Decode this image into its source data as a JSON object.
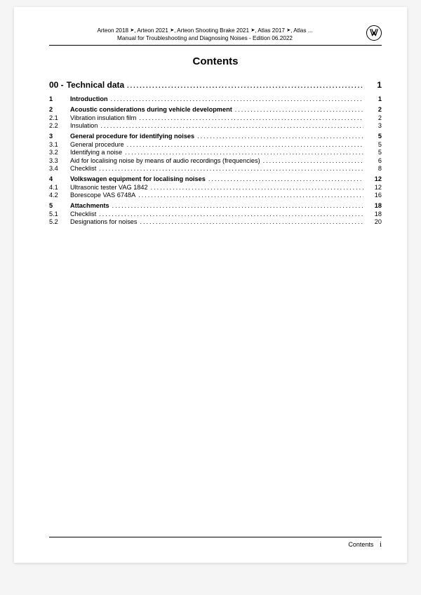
{
  "header": {
    "line1_parts": [
      "Arteon 2018 ",
      "➤",
      ", Arteon 2021 ",
      "➤",
      ", Arteon Shooting Brake 2021 ",
      "➤",
      ", Atlas 2017 ",
      "➤",
      ", Atlas ..."
    ],
    "line2": "Manual for Troubleshooting and Diagnosing Noises - Edition 06.2022"
  },
  "title": "Contents",
  "section": {
    "num": "00 -",
    "label": "Technical data",
    "page": "1"
  },
  "groups": [
    {
      "rows": [
        {
          "num": "1",
          "label": "Introduction",
          "page": "1",
          "bold": true
        }
      ]
    },
    {
      "rows": [
        {
          "num": "2",
          "label": "Acoustic considerations during vehicle development",
          "page": "2",
          "bold": true
        },
        {
          "num": "2.1",
          "label": "Vibration insulation film",
          "page": "2",
          "bold": false
        },
        {
          "num": "2.2",
          "label": "Insulation",
          "page": "3",
          "bold": false
        }
      ]
    },
    {
      "rows": [
        {
          "num": "3",
          "label": "General procedure for identifying noises",
          "page": "5",
          "bold": true
        },
        {
          "num": "3.1",
          "label": "General procedure",
          "page": "5",
          "bold": false
        },
        {
          "num": "3.2",
          "label": "Identifying a noise",
          "page": "5",
          "bold": false
        },
        {
          "num": "3.3",
          "label": "Aid for localising noise by means of audio recordings (frequencies)",
          "page": "6",
          "bold": false
        },
        {
          "num": "3.4",
          "label": "Checklist",
          "page": "8",
          "bold": false
        }
      ]
    },
    {
      "rows": [
        {
          "num": "4",
          "label": "Volkswagen equipment for localising noises",
          "page": "12",
          "bold": true
        },
        {
          "num": "4.1",
          "label": "Ultrasonic tester VAG 1842",
          "page": "12",
          "bold": false
        },
        {
          "num": "4.2",
          "label": "Borescope VAS 6748A",
          "page": "16",
          "bold": false
        }
      ]
    },
    {
      "rows": [
        {
          "num": "5",
          "label": "Attachments",
          "page": "18",
          "bold": true
        },
        {
          "num": "5.1",
          "label": "Checklist",
          "page": "18",
          "bold": false
        },
        {
          "num": "5.2",
          "label": "Designations for noises",
          "page": "20",
          "bold": false
        }
      ]
    }
  ],
  "footer": {
    "label": "Contents",
    "page": "i"
  },
  "leader": "........................................................................................................................"
}
